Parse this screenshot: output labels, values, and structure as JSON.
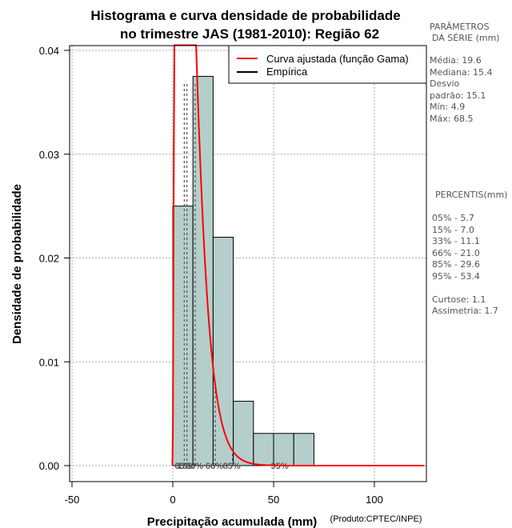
{
  "chart_data": {
    "type": "bar",
    "title_line1": "Histograma e curva densidade de probabilidade",
    "title_line2": "no trimestre JAS (1981-2010): Região 62",
    "xlabel": "Precipitação acumulada (mm)",
    "ylabel": "Densidade de probabilidade",
    "credit": "(Produto:CPTEC/INPE)",
    "xlim": [
      -50,
      125
    ],
    "ylim": [
      0,
      0.04
    ],
    "x_ticks": [
      -50,
      0,
      50,
      100
    ],
    "y_ticks": [
      0.0,
      0.01,
      0.02,
      0.03,
      0.04
    ],
    "y_tick_labels": [
      "0.00",
      "0.01",
      "0.02",
      "0.03",
      "0.04"
    ],
    "bins": [
      {
        "from": 0,
        "to": 10,
        "density": 0.025
      },
      {
        "from": 10,
        "to": 20,
        "density": 0.0375
      },
      {
        "from": 20,
        "to": 30,
        "density": 0.022
      },
      {
        "from": 30,
        "to": 40,
        "density": 0.0062
      },
      {
        "from": 40,
        "to": 60,
        "density": 0.0031
      },
      {
        "from": 60,
        "to": 70,
        "density": 0.0031
      }
    ],
    "gamma_curve": {
      "shape": 1.92,
      "scale": 4.3,
      "shift": 0
    },
    "legend": [
      {
        "label": "Curva ajustada (função Gama)",
        "color": "#ff0000"
      },
      {
        "label": "Empírica",
        "color": "#000000"
      }
    ],
    "percentile_lines": [
      {
        "label": "05%",
        "value": 5.7
      },
      {
        "label": "15%",
        "value": 7.0
      },
      {
        "label": "33%",
        "value": 11.1
      },
      {
        "label": "66%",
        "value": 21.0
      },
      {
        "label": "85%",
        "value": 29.6
      },
      {
        "label": "95%",
        "value": 53.4
      }
    ],
    "colors": {
      "bar_fill": "#b4cecc",
      "curve": "#ff0000",
      "grid": "#aaaaaa",
      "percentile": "#555555"
    }
  },
  "side_panel": {
    "params_title_1": "PARÂMETROS",
    "params_title_2": "DA SÉRIE (mm)",
    "media": "Média:  19.6",
    "mediana": "Mediana:  15.4",
    "desvio_1": "Desvio",
    "desvio_2": "padrão:  15.1",
    "min": "Mín:  4.9",
    "max": "Máx:  68.5",
    "percentis_title": "PERCENTIS(mm)",
    "percentis": [
      "05% -  5.7",
      "15% -  7.0",
      "33% -  11.1",
      "66% -  21.0",
      "85% -  29.6",
      "95% -  53.4"
    ],
    "curtose": "Curtose:  1.1",
    "assimetria": "Assimetria:  1.7"
  }
}
